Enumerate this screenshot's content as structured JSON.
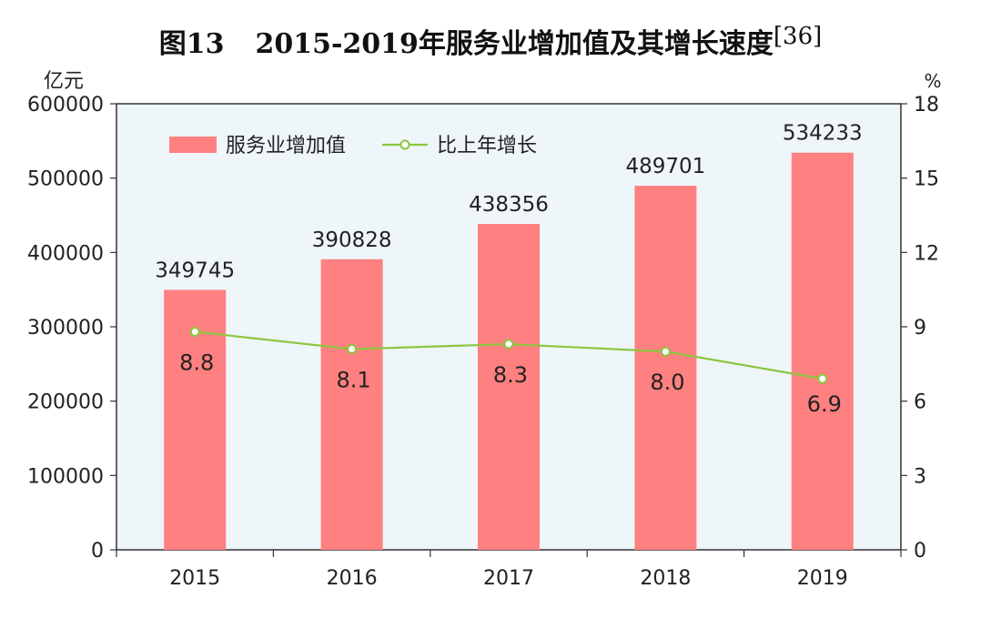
{
  "title": {
    "figure_number": "图13",
    "text": "2015-2019年服务业增加值及其增长速度",
    "reference": "[36]"
  },
  "chart_data": {
    "type": "bar",
    "categories": [
      "2015",
      "2016",
      "2017",
      "2018",
      "2019"
    ],
    "series": [
      {
        "name": "服务业增加值",
        "type": "bar",
        "axis": "left",
        "color": "#ff8080",
        "values": [
          349745,
          390828,
          438356,
          489701,
          534233
        ],
        "labels": [
          "349745",
          "390828",
          "438356",
          "489701",
          "534233"
        ]
      },
      {
        "name": "比上年增长",
        "type": "line",
        "axis": "right",
        "color": "#8cc63f",
        "values": [
          8.8,
          8.1,
          8.3,
          8.0,
          6.9
        ],
        "labels": [
          "8.8",
          "8.1",
          "8.3",
          "8.0",
          "6.9"
        ]
      }
    ],
    "ylabel_left": "亿元",
    "ylabel_right": "%",
    "ylim_left": [
      0,
      600000
    ],
    "ylim_right": [
      0,
      18
    ],
    "yticks_left": [
      "0",
      "100000",
      "200000",
      "300000",
      "400000",
      "500000",
      "600000"
    ],
    "yticks_right": [
      "0",
      "3",
      "6",
      "9",
      "12",
      "15",
      "18"
    ],
    "legend_position": "top-left",
    "plot_background": "#eef6fa",
    "grid": false
  }
}
